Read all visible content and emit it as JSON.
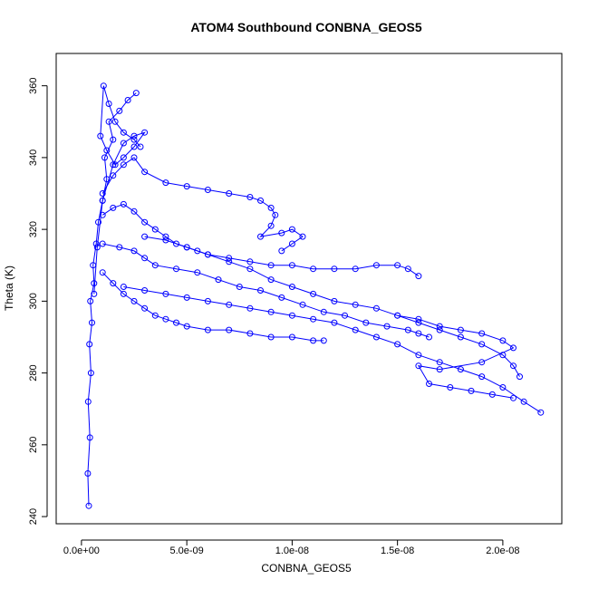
{
  "chart_data": {
    "type": "scatter",
    "title": "ATOM4 Southbound CONBNA_GEOS5",
    "xlabel": "CONBNA_GEOS5",
    "ylabel": "Theta (K)",
    "xlim": [
      -1.2e-09,
      2.28e-08
    ],
    "ylim": [
      238,
      369
    ],
    "x_ticks": [
      {
        "value": 0,
        "label": "0.0e+00"
      },
      {
        "value": 5e-09,
        "label": "5.0e-09"
      },
      {
        "value": 1e-08,
        "label": "1.0e-08"
      },
      {
        "value": 1.5e-08,
        "label": "1.5e-08"
      },
      {
        "value": 2e-08,
        "label": "2.0e-08"
      }
    ],
    "y_ticks": [
      {
        "value": 240,
        "label": "240"
      },
      {
        "value": 260,
        "label": "260"
      },
      {
        "value": 280,
        "label": "280"
      },
      {
        "value": 300,
        "label": "300"
      },
      {
        "value": 320,
        "label": "320"
      },
      {
        "value": 340,
        "label": "340"
      },
      {
        "value": 360,
        "label": "360"
      }
    ],
    "marker": "open-circle",
    "connected": true,
    "color": "#0000ff",
    "grid": false,
    "legend": "none",
    "series": [
      {
        "x": [
          3.5e-10,
          3e-10,
          4e-10,
          3.2e-10,
          4.5e-10,
          3.8e-10,
          5e-10,
          4.2e-10,
          6e-10,
          5.5e-10,
          7e-10,
          8e-10,
          1e-09,
          1.2e-09,
          1.1e-09,
          1.5e-09,
          1.3e-09,
          1.8e-09,
          2.2e-09,
          2.6e-09
        ],
        "y": [
          243,
          252,
          262,
          272,
          280,
          288,
          294,
          300,
          305,
          310,
          316,
          322,
          328,
          334,
          340,
          345,
          350,
          353,
          356,
          358
        ]
      },
      {
        "x": [
          6e-10,
          7.5e-10,
          1e-09,
          1.5e-09,
          2e-09,
          2.5e-09,
          3e-09,
          2.5e-09,
          2e-09,
          1.6e-09,
          1.2e-09,
          9e-10,
          1.05e-09,
          1.3e-09,
          1.6e-09,
          2e-09,
          2.5e-09,
          2.8e-09
        ],
        "y": [
          302,
          315,
          328,
          338,
          344,
          346,
          347,
          343,
          340,
          338,
          342,
          346,
          360,
          355,
          350,
          347,
          345,
          343
        ]
      },
      {
        "x": [
          1e-09,
          1.5e-09,
          2e-09,
          2.5e-09,
          3e-09,
          4e-09,
          5e-09,
          6e-09,
          7e-09,
          8e-09,
          8.5e-09,
          9e-09,
          9.2e-09,
          9e-09,
          8.5e-09,
          9.5e-09,
          1e-08,
          1.05e-08,
          1e-08,
          9.5e-09
        ],
        "y": [
          330,
          335,
          338,
          340,
          336,
          333,
          332,
          331,
          330,
          329,
          328,
          326,
          324,
          321,
          318,
          319,
          320,
          318,
          316,
          314
        ]
      },
      {
        "x": [
          1e-09,
          1.5e-09,
          2e-09,
          2.5e-09,
          3e-09,
          3.5e-09,
          4e-09,
          4.5e-09,
          5e-09,
          5.5e-09,
          6e-09,
          7e-09,
          8e-09,
          9e-09,
          1e-08,
          1.1e-08,
          1.2e-08,
          1.3e-08,
          1.4e-08,
          1.5e-08,
          1.6e-08,
          1.7e-08,
          1.8e-08,
          1.9e-08,
          2e-08,
          2.05e-08,
          2.08e-08
        ],
        "y": [
          324,
          326,
          327,
          325,
          322,
          320,
          318,
          316,
          315,
          314,
          313,
          311,
          309,
          306,
          304,
          302,
          300,
          299,
          298,
          296,
          294,
          292,
          290,
          288,
          285,
          282,
          279
        ]
      },
      {
        "x": [
          1e-09,
          1.8e-09,
          2.5e-09,
          3e-09,
          3.5e-09,
          4.5e-09,
          5.5e-09,
          6.5e-09,
          7.5e-09,
          8.5e-09,
          9.5e-09,
          1.05e-08,
          1.15e-08,
          1.25e-08,
          1.35e-08,
          1.45e-08,
          1.55e-08,
          1.6e-08,
          1.65e-08
        ],
        "y": [
          316,
          315,
          314,
          312,
          310,
          309,
          308,
          306,
          304,
          303,
          301,
          299,
          297,
          296,
          294,
          293,
          292,
          291,
          290
        ]
      },
      {
        "x": [
          1e-09,
          1.5e-09,
          2e-09,
          2.5e-09,
          3e-09,
          3.5e-09,
          4e-09,
          4.5e-09,
          5e-09,
          6e-09,
          7e-09,
          8e-09,
          9e-09,
          1e-08,
          1.1e-08,
          1.15e-08
        ],
        "y": [
          308,
          305,
          302,
          300,
          298,
          296,
          295,
          294,
          293,
          292,
          292,
          291,
          290,
          290,
          289,
          289
        ]
      },
      {
        "x": [
          2e-09,
          3e-09,
          4e-09,
          5e-09,
          6e-09,
          7e-09,
          8e-09,
          9e-09,
          1e-08,
          1.1e-08,
          1.2e-08,
          1.3e-08,
          1.4e-08,
          1.5e-08,
          1.6e-08,
          1.7e-08,
          1.8e-08,
          1.9e-08,
          2e-08,
          2.1e-08,
          2.18e-08
        ],
        "y": [
          304,
          303,
          302,
          301,
          300,
          299,
          298,
          297,
          296,
          295,
          294,
          292,
          290,
          288,
          285,
          283,
          281,
          279,
          276,
          272,
          269
        ]
      },
      {
        "x": [
          3e-09,
          4e-09,
          5e-09,
          6e-09,
          7e-09,
          8e-09,
          9e-09,
          1e-08,
          1.1e-08,
          1.2e-08,
          1.3e-08,
          1.4e-08,
          1.5e-08,
          1.55e-08,
          1.6e-08
        ],
        "y": [
          318,
          317,
          315,
          313,
          312,
          311,
          310,
          310,
          309,
          309,
          309,
          310,
          310,
          309,
          307
        ]
      },
      {
        "x": [
          1.5e-08,
          1.6e-08,
          1.7e-08,
          1.8e-08,
          1.9e-08,
          2e-08,
          2.05e-08,
          1.9e-08,
          1.7e-08,
          1.6e-08,
          1.65e-08,
          1.75e-08,
          1.85e-08,
          1.95e-08,
          2.05e-08
        ],
        "y": [
          296,
          295,
          293,
          292,
          291,
          289,
          287,
          283,
          281,
          282,
          277,
          276,
          275,
          274,
          273
        ]
      }
    ]
  }
}
